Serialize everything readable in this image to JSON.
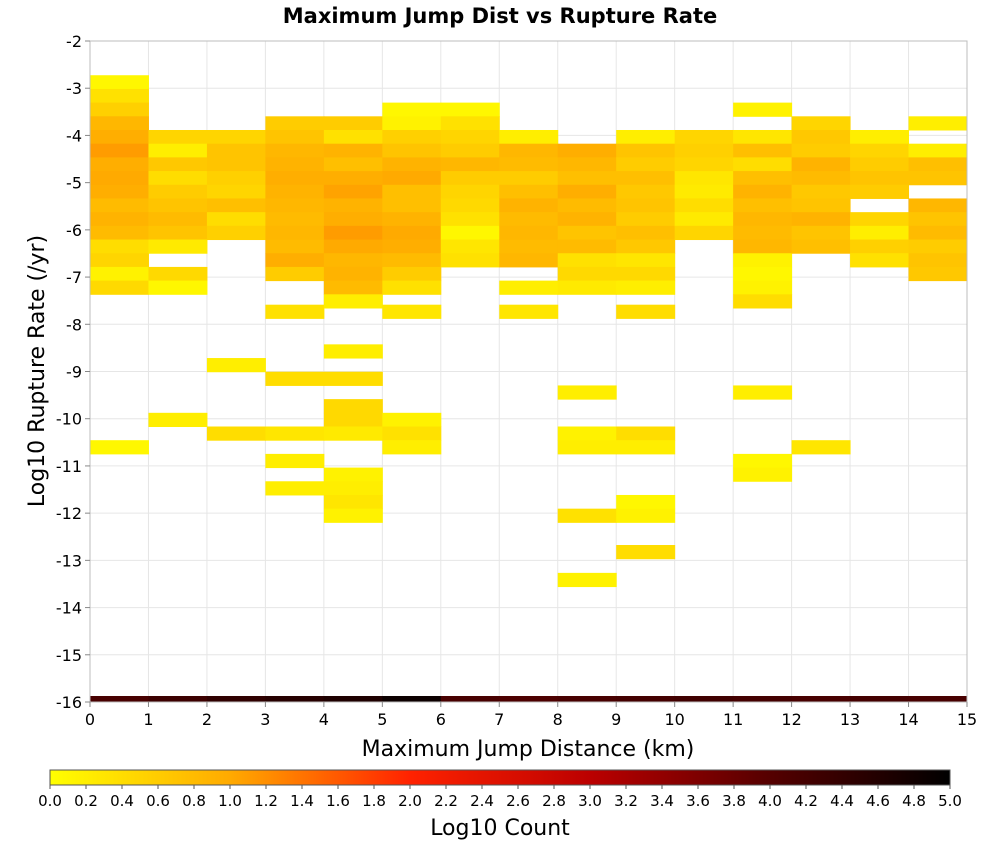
{
  "chart_data": {
    "type": "heatmap",
    "title": "Maximum Jump Dist vs Rupture Rate",
    "xlabel": "Maximum Jump Distance (km)",
    "ylabel": "Log10 Rupture Rate (/yr)",
    "xlim": [
      0,
      15
    ],
    "ylim": [
      -16,
      -2
    ],
    "x_ticks": [
      "0",
      "1",
      "2",
      "3",
      "4",
      "5",
      "6",
      "7",
      "8",
      "9",
      "10",
      "11",
      "12",
      "13",
      "14",
      "15"
    ],
    "y_ticks": [
      "-2",
      "-3",
      "-4",
      "-5",
      "-6",
      "-7",
      "-8",
      "-9",
      "-10",
      "-11",
      "-12",
      "-13",
      "-14",
      "-15",
      "-16"
    ],
    "bin_width_x": 1,
    "bin_height_y": 0.29,
    "grid": true,
    "colorbar": {
      "label": "Log10 Count",
      "range": [
        0,
        5
      ],
      "colors": [
        "#ffff00",
        "#ff9900",
        "#dd0000",
        "#880000",
        "#000000"
      ],
      "ticks": [
        "0.0",
        "0.2",
        "0.4",
        "0.6",
        "0.8",
        "1.0",
        "1.2",
        "1.4",
        "1.6",
        "1.8",
        "2.0",
        "2.2",
        "2.4",
        "2.6",
        "2.8",
        "3.0",
        "3.2",
        "3.4",
        "3.6",
        "3.8",
        "4.0",
        "4.2",
        "4.4",
        "4.6",
        "4.8",
        "5.0"
      ]
    },
    "cells": [
      {
        "x": 0,
        "y": -2.87,
        "v": 0.1
      },
      {
        "x": 0,
        "y": -3.16,
        "v": 0.35
      },
      {
        "x": 0,
        "y": -3.45,
        "v": 0.55
      },
      {
        "x": 0,
        "y": -3.74,
        "v": 0.85
      },
      {
        "x": 0,
        "y": -4.03,
        "v": 0.95
      },
      {
        "x": 0,
        "y": -4.32,
        "v": 1.1
      },
      {
        "x": 0,
        "y": -4.61,
        "v": 0.95
      },
      {
        "x": 0,
        "y": -4.9,
        "v": 1.0
      },
      {
        "x": 0,
        "y": -5.19,
        "v": 0.95
      },
      {
        "x": 0,
        "y": -5.48,
        "v": 0.8
      },
      {
        "x": 0,
        "y": -5.77,
        "v": 0.9
      },
      {
        "x": 0,
        "y": -6.06,
        "v": 0.8
      },
      {
        "x": 0,
        "y": -6.35,
        "v": 0.4
      },
      {
        "x": 0,
        "y": -6.64,
        "v": 0.5
      },
      {
        "x": 0,
        "y": -6.93,
        "v": 0.15
      },
      {
        "x": 0,
        "y": -7.22,
        "v": 0.45
      },
      {
        "x": 0,
        "y": -10.6,
        "v": 0.1
      },
      {
        "x": 1,
        "y": -4.03,
        "v": 0.5
      },
      {
        "x": 1,
        "y": -4.32,
        "v": 0.2
      },
      {
        "x": 1,
        "y": -4.61,
        "v": 0.65
      },
      {
        "x": 1,
        "y": -4.9,
        "v": 0.4
      },
      {
        "x": 1,
        "y": -5.19,
        "v": 0.6
      },
      {
        "x": 1,
        "y": -5.48,
        "v": 0.7
      },
      {
        "x": 1,
        "y": -5.77,
        "v": 0.8
      },
      {
        "x": 1,
        "y": -6.06,
        "v": 0.7
      },
      {
        "x": 1,
        "y": -6.35,
        "v": 0.25
      },
      {
        "x": 1,
        "y": -6.93,
        "v": 0.45
      },
      {
        "x": 1,
        "y": -7.22,
        "v": 0.1
      },
      {
        "x": 1,
        "y": -10.02,
        "v": 0.2
      },
      {
        "x": 2,
        "y": -4.03,
        "v": 0.5
      },
      {
        "x": 2,
        "y": -4.32,
        "v": 0.7
      },
      {
        "x": 2,
        "y": -4.61,
        "v": 0.7
      },
      {
        "x": 2,
        "y": -4.9,
        "v": 0.55
      },
      {
        "x": 2,
        "y": -5.19,
        "v": 0.5
      },
      {
        "x": 2,
        "y": -5.48,
        "v": 0.75
      },
      {
        "x": 2,
        "y": -5.77,
        "v": 0.4
      },
      {
        "x": 2,
        "y": -6.06,
        "v": 0.55
      },
      {
        "x": 2,
        "y": -8.86,
        "v": 0.2
      },
      {
        "x": 2,
        "y": -10.31,
        "v": 0.4
      },
      {
        "x": 3,
        "y": -3.74,
        "v": 0.6
      },
      {
        "x": 3,
        "y": -4.03,
        "v": 0.7
      },
      {
        "x": 3,
        "y": -4.32,
        "v": 0.85
      },
      {
        "x": 3,
        "y": -4.61,
        "v": 0.9
      },
      {
        "x": 3,
        "y": -4.9,
        "v": 0.95
      },
      {
        "x": 3,
        "y": -5.19,
        "v": 0.9
      },
      {
        "x": 3,
        "y": -5.48,
        "v": 0.85
      },
      {
        "x": 3,
        "y": -5.77,
        "v": 0.8
      },
      {
        "x": 3,
        "y": -6.06,
        "v": 0.85
      },
      {
        "x": 3,
        "y": -6.35,
        "v": 0.8
      },
      {
        "x": 3,
        "y": -6.64,
        "v": 0.95
      },
      {
        "x": 3,
        "y": -6.93,
        "v": 0.6
      },
      {
        "x": 3,
        "y": -7.73,
        "v": 0.35
      },
      {
        "x": 3,
        "y": -9.15,
        "v": 0.4
      },
      {
        "x": 3,
        "y": -10.31,
        "v": 0.3
      },
      {
        "x": 3,
        "y": -10.89,
        "v": 0.2
      },
      {
        "x": 3,
        "y": -11.47,
        "v": 0.2
      },
      {
        "x": 4,
        "y": -3.74,
        "v": 0.6
      },
      {
        "x": 4,
        "y": -4.03,
        "v": 0.35
      },
      {
        "x": 4,
        "y": -4.32,
        "v": 0.9
      },
      {
        "x": 4,
        "y": -4.61,
        "v": 0.75
      },
      {
        "x": 4,
        "y": -4.9,
        "v": 0.95
      },
      {
        "x": 4,
        "y": -5.19,
        "v": 1.05
      },
      {
        "x": 4,
        "y": -5.48,
        "v": 0.9
      },
      {
        "x": 4,
        "y": -5.77,
        "v": 0.95
      },
      {
        "x": 4,
        "y": -6.06,
        "v": 1.1
      },
      {
        "x": 4,
        "y": -6.35,
        "v": 1.0
      },
      {
        "x": 4,
        "y": -6.64,
        "v": 0.85
      },
      {
        "x": 4,
        "y": -6.93,
        "v": 0.9
      },
      {
        "x": 4,
        "y": -7.22,
        "v": 0.8
      },
      {
        "x": 4,
        "y": -7.51,
        "v": 0.2
      },
      {
        "x": 4,
        "y": -8.57,
        "v": 0.2
      },
      {
        "x": 4,
        "y": -9.15,
        "v": 0.4
      },
      {
        "x": 4,
        "y": -9.73,
        "v": 0.45
      },
      {
        "x": 4,
        "y": -10.02,
        "v": 0.45
      },
      {
        "x": 4,
        "y": -10.31,
        "v": 0.25
      },
      {
        "x": 4,
        "y": -11.18,
        "v": 0.15
      },
      {
        "x": 4,
        "y": -11.47,
        "v": 0.2
      },
      {
        "x": 4,
        "y": -11.76,
        "v": 0.3
      },
      {
        "x": 4,
        "y": -12.05,
        "v": 0.15
      },
      {
        "x": 5,
        "y": -3.45,
        "v": 0.1
      },
      {
        "x": 5,
        "y": -3.74,
        "v": 0.15
      },
      {
        "x": 5,
        "y": -4.03,
        "v": 0.55
      },
      {
        "x": 5,
        "y": -4.32,
        "v": 0.7
      },
      {
        "x": 5,
        "y": -4.61,
        "v": 0.9
      },
      {
        "x": 5,
        "y": -4.9,
        "v": 1.0
      },
      {
        "x": 5,
        "y": -5.19,
        "v": 0.75
      },
      {
        "x": 5,
        "y": -5.48,
        "v": 0.75
      },
      {
        "x": 5,
        "y": -5.77,
        "v": 0.9
      },
      {
        "x": 5,
        "y": -6.06,
        "v": 1.0
      },
      {
        "x": 5,
        "y": -6.35,
        "v": 0.95
      },
      {
        "x": 5,
        "y": -6.64,
        "v": 0.8
      },
      {
        "x": 5,
        "y": -6.93,
        "v": 0.6
      },
      {
        "x": 5,
        "y": -7.22,
        "v": 0.35
      },
      {
        "x": 5,
        "y": -7.73,
        "v": 0.3
      },
      {
        "x": 5,
        "y": -10.02,
        "v": 0.15
      },
      {
        "x": 5,
        "y": -10.31,
        "v": 0.35
      },
      {
        "x": 5,
        "y": -10.6,
        "v": 0.2
      },
      {
        "x": 6,
        "y": -3.45,
        "v": 0.1
      },
      {
        "x": 6,
        "y": -3.74,
        "v": 0.35
      },
      {
        "x": 6,
        "y": -4.03,
        "v": 0.5
      },
      {
        "x": 6,
        "y": -4.32,
        "v": 0.6
      },
      {
        "x": 6,
        "y": -4.61,
        "v": 0.85
      },
      {
        "x": 6,
        "y": -4.9,
        "v": 0.6
      },
      {
        "x": 6,
        "y": -5.19,
        "v": 0.5
      },
      {
        "x": 6,
        "y": -5.48,
        "v": 0.45
      },
      {
        "x": 6,
        "y": -5.77,
        "v": 0.35
      },
      {
        "x": 6,
        "y": -6.06,
        "v": 0.1
      },
      {
        "x": 6,
        "y": -6.35,
        "v": 0.3
      },
      {
        "x": 6,
        "y": -6.64,
        "v": 0.35
      },
      {
        "x": 7,
        "y": -4.03,
        "v": 0.2
      },
      {
        "x": 7,
        "y": -4.32,
        "v": 0.85
      },
      {
        "x": 7,
        "y": -4.61,
        "v": 0.8
      },
      {
        "x": 7,
        "y": -4.9,
        "v": 0.6
      },
      {
        "x": 7,
        "y": -5.19,
        "v": 0.75
      },
      {
        "x": 7,
        "y": -5.48,
        "v": 0.9
      },
      {
        "x": 7,
        "y": -5.77,
        "v": 0.8
      },
      {
        "x": 7,
        "y": -6.06,
        "v": 0.85
      },
      {
        "x": 7,
        "y": -6.35,
        "v": 0.8
      },
      {
        "x": 7,
        "y": -6.64,
        "v": 0.85
      },
      {
        "x": 7,
        "y": -7.22,
        "v": 0.2
      },
      {
        "x": 7,
        "y": -7.73,
        "v": 0.3
      },
      {
        "x": 8,
        "y": -4.32,
        "v": 0.95
      },
      {
        "x": 8,
        "y": -4.61,
        "v": 0.85
      },
      {
        "x": 8,
        "y": -4.9,
        "v": 0.75
      },
      {
        "x": 8,
        "y": -5.19,
        "v": 0.95
      },
      {
        "x": 8,
        "y": -5.48,
        "v": 0.8
      },
      {
        "x": 8,
        "y": -5.77,
        "v": 0.9
      },
      {
        "x": 8,
        "y": -6.06,
        "v": 0.7
      },
      {
        "x": 8,
        "y": -6.35,
        "v": 0.8
      },
      {
        "x": 8,
        "y": -6.64,
        "v": 0.35
      },
      {
        "x": 8,
        "y": -6.93,
        "v": 0.45
      },
      {
        "x": 8,
        "y": -7.22,
        "v": 0.25
      },
      {
        "x": 8,
        "y": -9.44,
        "v": 0.2
      },
      {
        "x": 8,
        "y": -10.31,
        "v": 0.15
      },
      {
        "x": 8,
        "y": -10.6,
        "v": 0.2
      },
      {
        "x": 8,
        "y": -12.05,
        "v": 0.35
      },
      {
        "x": 8,
        "y": -13.41,
        "v": 0.15
      },
      {
        "x": 9,
        "y": -4.03,
        "v": 0.2
      },
      {
        "x": 9,
        "y": -4.32,
        "v": 0.7
      },
      {
        "x": 9,
        "y": -4.61,
        "v": 0.6
      },
      {
        "x": 9,
        "y": -4.9,
        "v": 0.75
      },
      {
        "x": 9,
        "y": -5.19,
        "v": 0.65
      },
      {
        "x": 9,
        "y": -5.48,
        "v": 0.7
      },
      {
        "x": 9,
        "y": -5.77,
        "v": 0.6
      },
      {
        "x": 9,
        "y": -6.06,
        "v": 0.75
      },
      {
        "x": 9,
        "y": -6.35,
        "v": 0.65
      },
      {
        "x": 9,
        "y": -6.64,
        "v": 0.3
      },
      {
        "x": 9,
        "y": -6.93,
        "v": 0.45
      },
      {
        "x": 9,
        "y": -7.22,
        "v": 0.2
      },
      {
        "x": 9,
        "y": -7.73,
        "v": 0.4
      },
      {
        "x": 9,
        "y": -10.31,
        "v": 0.4
      },
      {
        "x": 9,
        "y": -10.6,
        "v": 0.2
      },
      {
        "x": 9,
        "y": -11.76,
        "v": 0.1
      },
      {
        "x": 9,
        "y": -12.05,
        "v": 0.15
      },
      {
        "x": 9,
        "y": -12.82,
        "v": 0.4
      },
      {
        "x": 10,
        "y": -4.03,
        "v": 0.5
      },
      {
        "x": 10,
        "y": -4.32,
        "v": 0.55
      },
      {
        "x": 10,
        "y": -4.61,
        "v": 0.5
      },
      {
        "x": 10,
        "y": -4.9,
        "v": 0.3
      },
      {
        "x": 10,
        "y": -5.19,
        "v": 0.25
      },
      {
        "x": 10,
        "y": -5.48,
        "v": 0.4
      },
      {
        "x": 10,
        "y": -5.77,
        "v": 0.25
      },
      {
        "x": 10,
        "y": -6.06,
        "v": 0.5
      },
      {
        "x": 11,
        "y": -3.45,
        "v": 0.15
      },
      {
        "x": 11,
        "y": -4.03,
        "v": 0.3
      },
      {
        "x": 11,
        "y": -4.32,
        "v": 0.75
      },
      {
        "x": 11,
        "y": -4.61,
        "v": 0.4
      },
      {
        "x": 11,
        "y": -4.9,
        "v": 0.75
      },
      {
        "x": 11,
        "y": -5.19,
        "v": 0.9
      },
      {
        "x": 11,
        "y": -5.48,
        "v": 0.75
      },
      {
        "x": 11,
        "y": -5.77,
        "v": 0.85
      },
      {
        "x": 11,
        "y": -6.06,
        "v": 0.8
      },
      {
        "x": 11,
        "y": -6.35,
        "v": 0.85
      },
      {
        "x": 11,
        "y": -6.64,
        "v": 0.15
      },
      {
        "x": 11,
        "y": -6.93,
        "v": 0.1
      },
      {
        "x": 11,
        "y": -7.22,
        "v": 0.15
      },
      {
        "x": 11,
        "y": -7.51,
        "v": 0.4
      },
      {
        "x": 11,
        "y": -9.44,
        "v": 0.2
      },
      {
        "x": 11,
        "y": -10.89,
        "v": 0.1
      },
      {
        "x": 11,
        "y": -11.18,
        "v": 0.15
      },
      {
        "x": 12,
        "y": -3.74,
        "v": 0.5
      },
      {
        "x": 12,
        "y": -4.03,
        "v": 0.65
      },
      {
        "x": 12,
        "y": -4.32,
        "v": 0.6
      },
      {
        "x": 12,
        "y": -4.61,
        "v": 0.9
      },
      {
        "x": 12,
        "y": -4.9,
        "v": 0.8
      },
      {
        "x": 12,
        "y": -5.19,
        "v": 0.65
      },
      {
        "x": 12,
        "y": -5.48,
        "v": 0.7
      },
      {
        "x": 12,
        "y": -5.77,
        "v": 0.9
      },
      {
        "x": 12,
        "y": -6.06,
        "v": 0.7
      },
      {
        "x": 12,
        "y": -6.35,
        "v": 0.75
      },
      {
        "x": 12,
        "y": -10.6,
        "v": 0.3
      },
      {
        "x": 13,
        "y": -4.03,
        "v": 0.2
      },
      {
        "x": 13,
        "y": -4.32,
        "v": 0.5
      },
      {
        "x": 13,
        "y": -4.61,
        "v": 0.6
      },
      {
        "x": 13,
        "y": -4.9,
        "v": 0.7
      },
      {
        "x": 13,
        "y": -5.19,
        "v": 0.6
      },
      {
        "x": 13,
        "y": -5.77,
        "v": 0.5
      },
      {
        "x": 13,
        "y": -6.06,
        "v": 0.2
      },
      {
        "x": 13,
        "y": -6.35,
        "v": 0.55
      },
      {
        "x": 13,
        "y": -6.64,
        "v": 0.35
      },
      {
        "x": 14,
        "y": -3.74,
        "v": 0.2
      },
      {
        "x": 14,
        "y": -4.32,
        "v": 0.2
      },
      {
        "x": 14,
        "y": -4.61,
        "v": 0.75
      },
      {
        "x": 14,
        "y": -4.9,
        "v": 0.7
      },
      {
        "x": 14,
        "y": -5.48,
        "v": 0.85
      },
      {
        "x": 14,
        "y": -5.77,
        "v": 0.7
      },
      {
        "x": 14,
        "y": -6.06,
        "v": 0.8
      },
      {
        "x": 14,
        "y": -6.35,
        "v": 0.6
      },
      {
        "x": 14,
        "y": -6.64,
        "v": 0.7
      },
      {
        "x": 14,
        "y": -6.93,
        "v": 0.65
      }
    ],
    "bottom_row": {
      "y": -16,
      "values": [
        4.15,
        4.3,
        4.45,
        4.55,
        4.65,
        4.85,
        4.15,
        4.1,
        4.15,
        4.2,
        4.25,
        4.2,
        4.15,
        4.2,
        4.15
      ]
    }
  }
}
